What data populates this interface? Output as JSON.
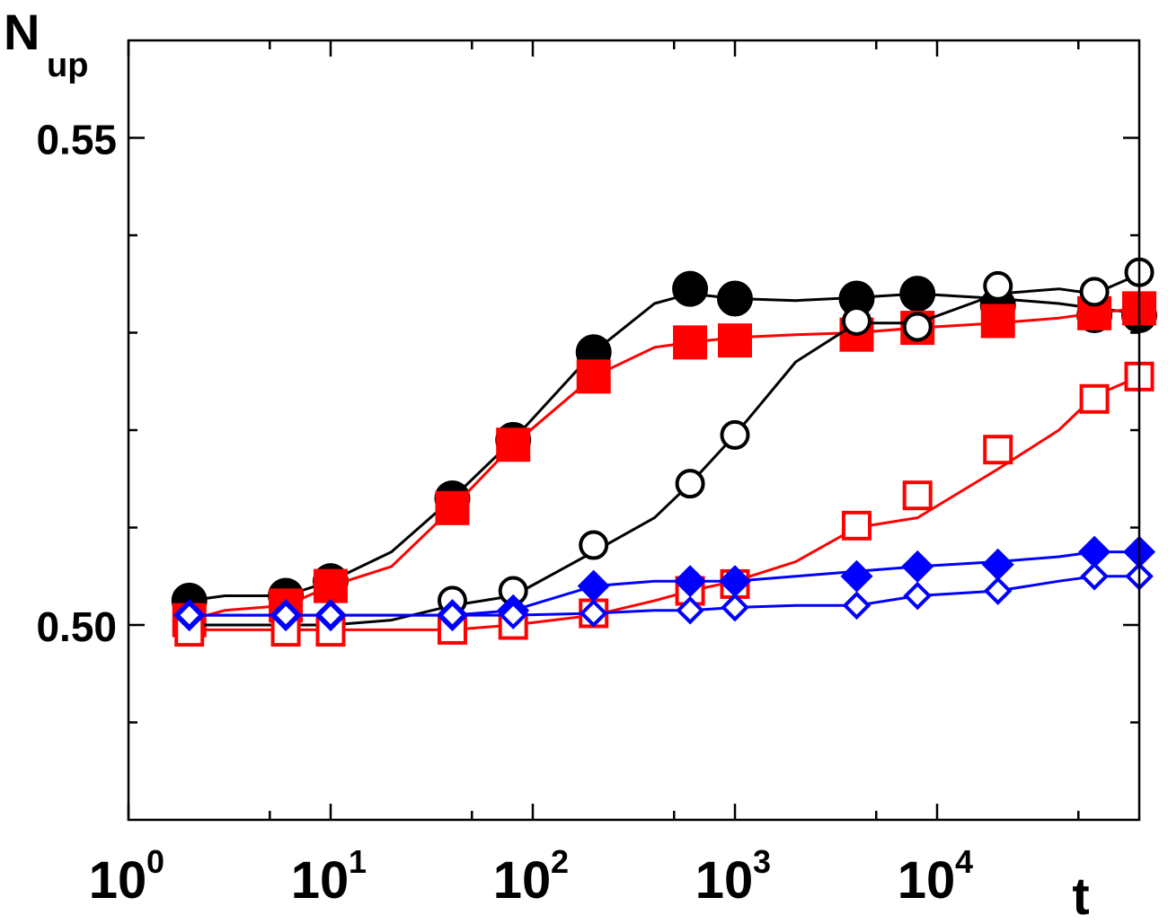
{
  "chart_data": {
    "type": "line",
    "x_scale": "log",
    "xlim": [
      1,
      100000
    ],
    "ylim": [
      0.48,
      0.56
    ],
    "xlabel": "t",
    "ylabel": {
      "main": "N",
      "sub": "up"
    },
    "x_ticks": [
      {
        "value": 1,
        "base": "10",
        "exp": "0"
      },
      {
        "value": 10,
        "base": "10",
        "exp": "1"
      },
      {
        "value": 100,
        "base": "10",
        "exp": "2"
      },
      {
        "value": 1000,
        "base": "10",
        "exp": "3"
      },
      {
        "value": 10000,
        "base": "10",
        "exp": "4"
      }
    ],
    "y_ticks": [
      {
        "value": 0.5,
        "label": "0.50"
      },
      {
        "value": 0.55,
        "label": "0.55"
      }
    ],
    "y_minor_ticks": [
      0.49,
      0.51,
      0.52,
      0.53,
      0.54
    ],
    "grid": false,
    "series": [
      {
        "color": "#000000",
        "marker": "circle",
        "filled": true,
        "marker_size": 40,
        "line": {
          "x": [
            2,
            3,
            6,
            10,
            20,
            40,
            80,
            200,
            400,
            600,
            1000,
            2000,
            4000,
            8000,
            20000,
            40000,
            60000,
            100000
          ],
          "y": [
            0.5025,
            0.503,
            0.503,
            0.5045,
            0.5075,
            0.513,
            0.519,
            0.528,
            0.533,
            0.534,
            0.5335,
            0.5333,
            0.5336,
            0.534,
            0.5335,
            0.533,
            0.5325,
            0.532
          ]
        },
        "markers": {
          "x": [
            2,
            6,
            10,
            40,
            80,
            200,
            600,
            1000,
            4000,
            8000,
            20000,
            60000,
            100000
          ],
          "y": [
            0.5025,
            0.503,
            0.5045,
            0.513,
            0.519,
            0.528,
            0.5345,
            0.5335,
            0.5335,
            0.534,
            0.5328,
            0.5318,
            0.5318
          ]
        }
      },
      {
        "color": "#ff0000",
        "marker": "square",
        "filled": true,
        "marker_size": 38,
        "line": {
          "x": [
            2,
            3,
            6,
            10,
            20,
            40,
            80,
            200,
            400,
            600,
            1000,
            2000,
            4000,
            8000,
            20000,
            40000,
            60000,
            100000
          ],
          "y": [
            0.5005,
            0.5015,
            0.502,
            0.504,
            0.506,
            0.512,
            0.5185,
            0.5255,
            0.5285,
            0.529,
            0.5295,
            0.5298,
            0.53,
            0.5305,
            0.531,
            0.5315,
            0.532,
            0.5325
          ]
        },
        "markers": {
          "x": [
            2,
            6,
            10,
            40,
            80,
            200,
            600,
            1000,
            4000,
            8000,
            20000,
            60000,
            100000
          ],
          "y": [
            0.5005,
            0.502,
            0.504,
            0.512,
            0.5185,
            0.5255,
            0.529,
            0.5292,
            0.5298,
            0.5305,
            0.5312,
            0.532,
            0.5325
          ]
        }
      },
      {
        "color": "#000000",
        "marker": "circle",
        "filled": false,
        "marker_size": 33,
        "line": {
          "x": [
            2,
            3,
            6,
            10,
            20,
            40,
            80,
            200,
            400,
            600,
            1000,
            2000,
            4000,
            8000,
            20000,
            40000,
            60000,
            100000
          ],
          "y": [
            0.5,
            0.5,
            0.5,
            0.5,
            0.5005,
            0.502,
            0.503,
            0.5075,
            0.511,
            0.5145,
            0.5195,
            0.527,
            0.531,
            0.531,
            0.534,
            0.5345,
            0.534,
            0.536
          ]
        },
        "markers": {
          "x": [
            40,
            80,
            200,
            600,
            1000,
            4000,
            8000,
            20000,
            60000,
            100000
          ],
          "y": [
            0.5025,
            0.5035,
            0.5082,
            0.5145,
            0.5195,
            0.5312,
            0.5306,
            0.5348,
            0.5342,
            0.5362
          ]
        }
      },
      {
        "color": "#ff0000",
        "marker": "square",
        "filled": false,
        "marker_size": 33,
        "line": {
          "x": [
            2,
            3,
            6,
            10,
            20,
            40,
            80,
            200,
            400,
            600,
            1000,
            2000,
            4000,
            8000,
            20000,
            40000,
            60000,
            100000
          ],
          "y": [
            0.4995,
            0.4995,
            0.4995,
            0.4995,
            0.4995,
            0.4995,
            0.5,
            0.501,
            0.5025,
            0.5035,
            0.5045,
            0.5065,
            0.51,
            0.511,
            0.516,
            0.52,
            0.5235,
            0.5255
          ]
        },
        "markers": {
          "x": [
            2,
            6,
            10,
            40,
            80,
            200,
            600,
            1000,
            4000,
            8000,
            20000,
            60000,
            100000
          ],
          "y": [
            0.4993,
            0.4993,
            0.4993,
            0.4995,
            0.5,
            0.5012,
            0.5035,
            0.5042,
            0.5102,
            0.5133,
            0.518,
            0.5232,
            0.5255
          ]
        }
      },
      {
        "color": "#0000ff",
        "marker": "diamond",
        "filled": true,
        "marker_size": 36,
        "line": {
          "x": [
            2,
            3,
            6,
            10,
            20,
            40,
            80,
            200,
            400,
            600,
            1000,
            2000,
            4000,
            8000,
            20000,
            40000,
            60000,
            100000
          ],
          "y": [
            0.501,
            0.501,
            0.501,
            0.501,
            0.501,
            0.501,
            0.5015,
            0.504,
            0.5045,
            0.5045,
            0.5045,
            0.505,
            0.5055,
            0.506,
            0.5065,
            0.507,
            0.5075,
            0.5075
          ]
        },
        "markers": {
          "x": [
            2,
            6,
            10,
            40,
            80,
            200,
            600,
            1000,
            4000,
            8000,
            20000,
            60000,
            100000
          ],
          "y": [
            0.501,
            0.501,
            0.501,
            0.501,
            0.5015,
            0.504,
            0.5045,
            0.5045,
            0.505,
            0.506,
            0.5062,
            0.5075,
            0.5075
          ]
        }
      },
      {
        "color": "#0000ff",
        "marker": "diamond",
        "filled": false,
        "marker_size": 30,
        "line": {
          "x": [
            2,
            3,
            6,
            10,
            20,
            40,
            80,
            200,
            400,
            600,
            1000,
            2000,
            4000,
            8000,
            20000,
            40000,
            60000,
            100000
          ],
          "y": [
            0.501,
            0.501,
            0.501,
            0.501,
            0.501,
            0.501,
            0.501,
            0.5012,
            0.5015,
            0.5015,
            0.5018,
            0.502,
            0.502,
            0.503,
            0.5035,
            0.5045,
            0.505,
            0.505
          ]
        },
        "markers": {
          "x": [
            2,
            6,
            10,
            40,
            80,
            200,
            600,
            1000,
            4000,
            8000,
            20000,
            60000,
            100000
          ],
          "y": [
            0.501,
            0.501,
            0.501,
            0.501,
            0.501,
            0.5012,
            0.5015,
            0.5018,
            0.502,
            0.503,
            0.5035,
            0.505,
            0.505
          ]
        }
      }
    ]
  }
}
